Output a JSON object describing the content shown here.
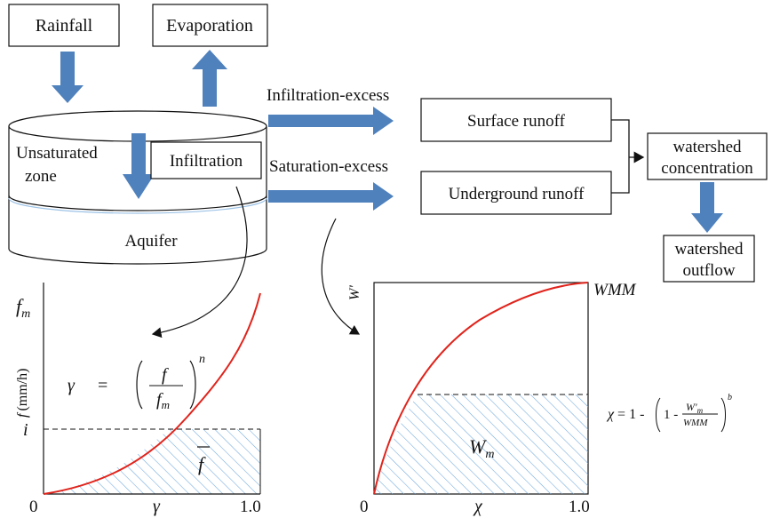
{
  "boxes": {
    "rainfall": "Rainfall",
    "evaporation": "Evaporation",
    "infiltration": "Infiltration",
    "surface_runoff": "Surface runoff",
    "underground_runoff": "Underground runoff",
    "watershed_concentration_1": "watershed",
    "watershed_concentration_2": "concentration",
    "watershed_outflow_1": "watershed",
    "watershed_outflow_2": "outflow"
  },
  "cylinder": {
    "unsaturated_1": "Unsaturated",
    "unsaturated_2": "zone",
    "aquifer": "Aquifer"
  },
  "arrows": {
    "infiltration_excess": "Infiltration-excess",
    "saturation_excess": "Saturation-excess"
  },
  "plot_left": {
    "y_top_label": "f",
    "y_top_sub": "m",
    "y_axis_label_f": "f",
    "y_axis_unit": "(mm/h)",
    "i_label": "i",
    "origin": "0",
    "x_label": "γ",
    "x_end": "1.0",
    "formula_lhs": "γ",
    "formula_eq": "=",
    "formula_num": "f",
    "formula_den": "f",
    "formula_den_sub": "m",
    "formula_exp": "n",
    "fbar": "f"
  },
  "plot_right": {
    "y_axis_label": "W'",
    "top_right_label": "WMM",
    "origin": "0",
    "x_label": "χ",
    "x_end": "1.0",
    "area_label": "W",
    "area_sub": "m",
    "formula_lhs": "χ = 1 -",
    "formula_one": "1 -",
    "formula_num": "W'",
    "formula_num_sub": "m",
    "formula_den": "WMM",
    "formula_exp": "b"
  },
  "colors": {
    "arrow": "#4f81bd",
    "curve": "#e0241c",
    "hatch": "#6fa8dc"
  }
}
